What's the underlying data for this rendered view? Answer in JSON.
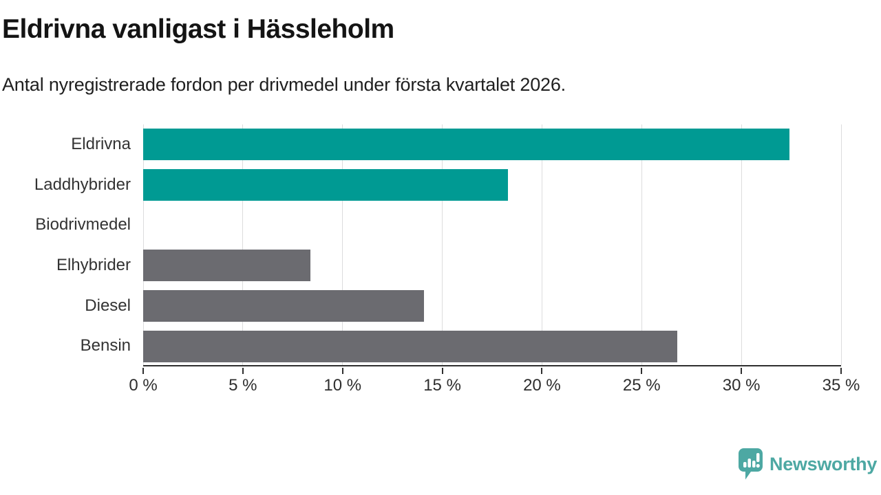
{
  "chart_data": {
    "type": "bar",
    "orientation": "horizontal",
    "title": "Eldrivna vanligast i Hässleholm",
    "subtitle": "Antal nyregistrerade fordon per drivmedel under första kvartalet 2026.",
    "categories": [
      "Eldrivna",
      "Laddhybrider",
      "Biodrivmedel",
      "Elhybrider",
      "Diesel",
      "Bensin"
    ],
    "values": [
      32.4,
      18.3,
      0,
      8.4,
      14.1,
      26.8
    ],
    "unit": "%",
    "series_colors": [
      "#009a93",
      "#009a93",
      "#009a93",
      "#6b6b70",
      "#6b6b70",
      "#6b6b70"
    ],
    "highlight_color": "#009a93",
    "default_color": "#6b6b70",
    "xlim": [
      0,
      35
    ],
    "x_ticks": [
      0,
      5,
      10,
      15,
      20,
      25,
      30,
      35
    ],
    "x_tick_labels": [
      "0 %",
      "5 %",
      "10 %",
      "15 %",
      "20 %",
      "25 %",
      "30 %",
      "35 %"
    ],
    "grid": "vertical",
    "legend": "none"
  },
  "footer": {
    "brand": "Newsworthy",
    "logo_icon": "newsworthy-speech-bubble-bar-chart-icon",
    "brand_color": "#4da8a3"
  },
  "colors": {
    "accent_teal": "#009a93",
    "neutral_gray": "#6b6b70",
    "gridline": "#dcdcdd",
    "axis": "#2e2e2e",
    "title_text": "#141414",
    "label_text": "#333333"
  }
}
